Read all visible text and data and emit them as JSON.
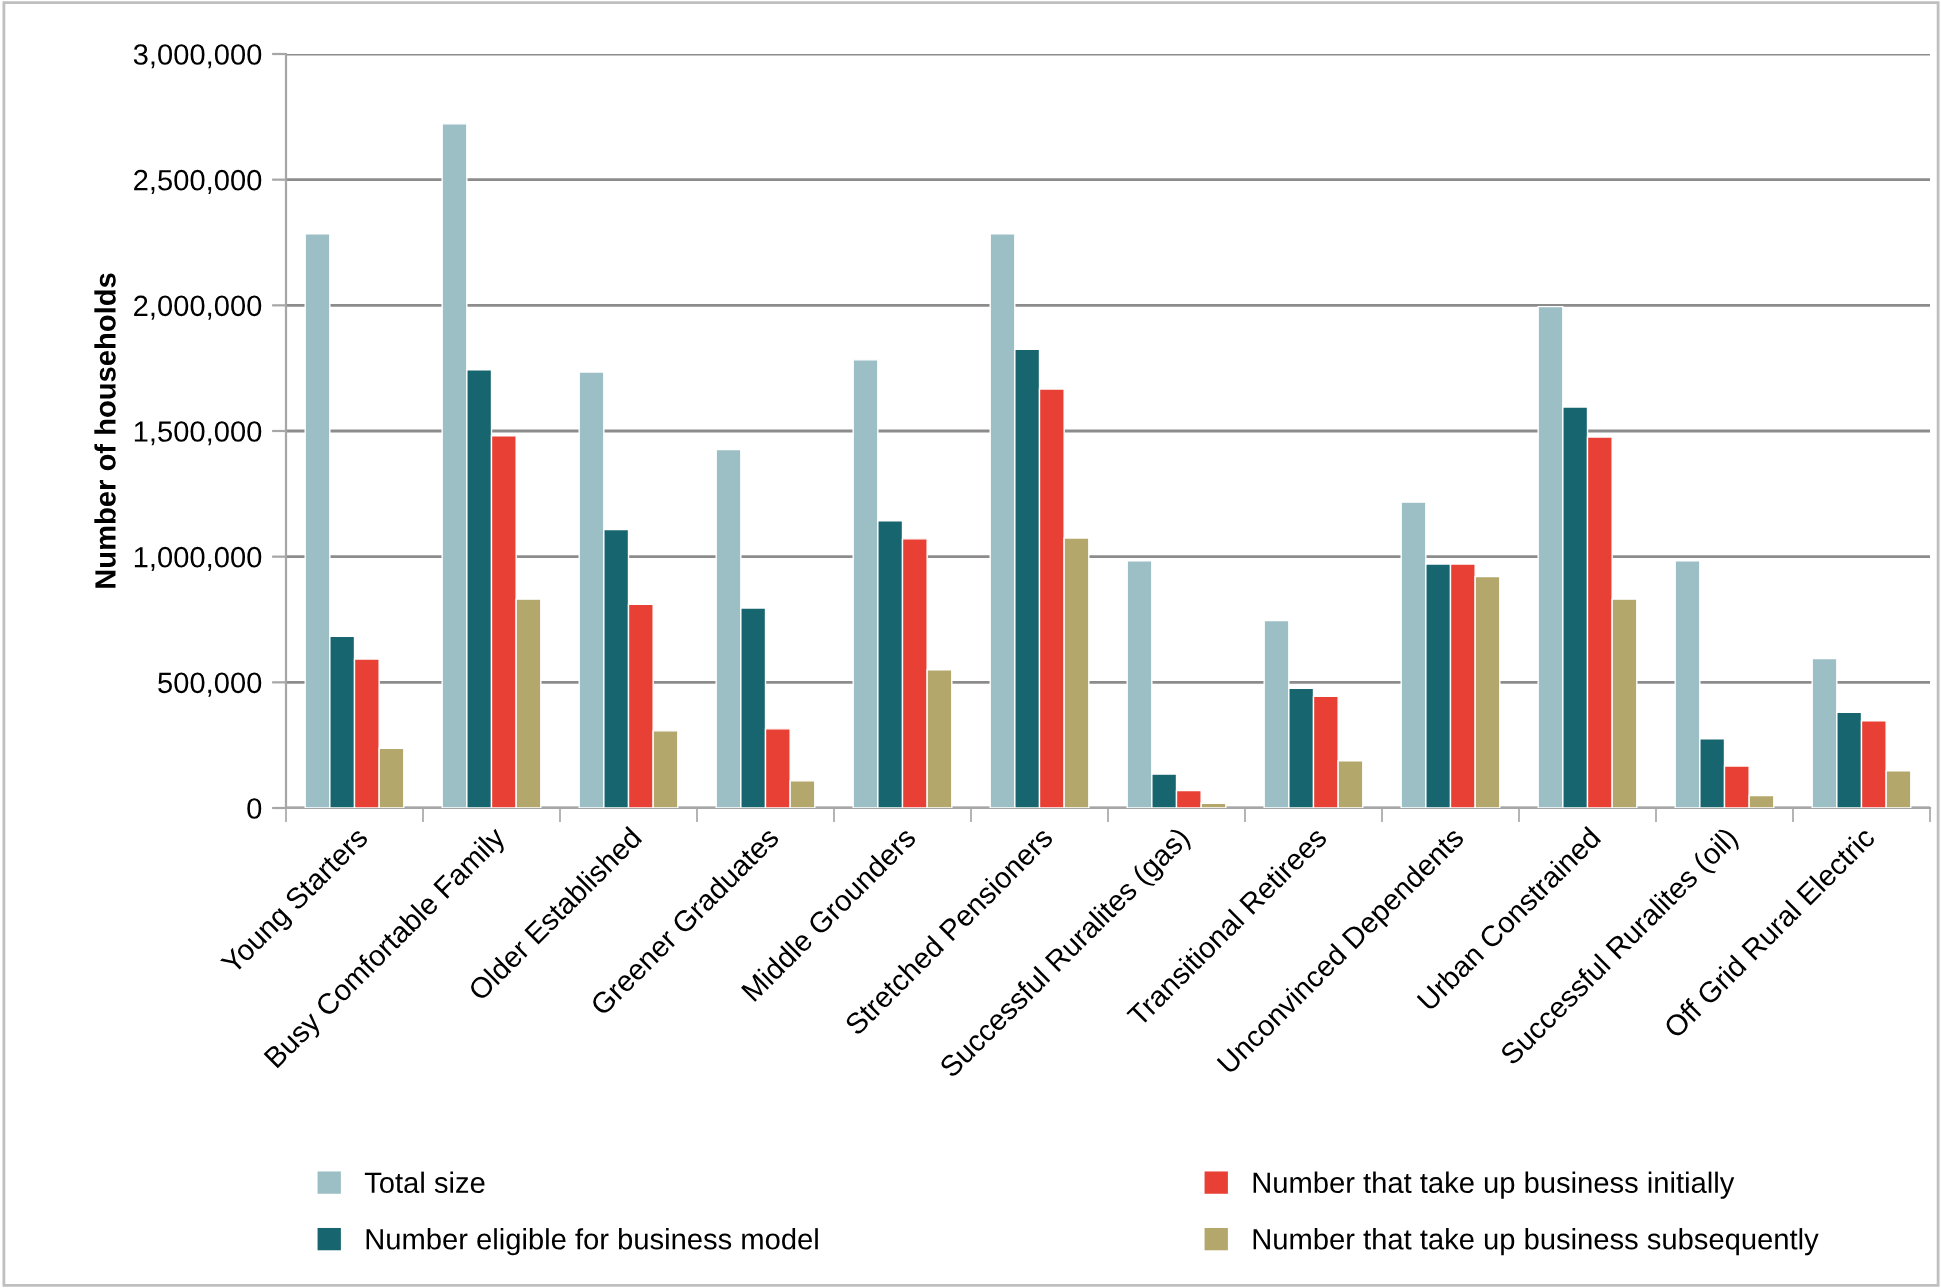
{
  "chart_data": {
    "type": "bar",
    "ylabel": "Number of households",
    "categories": [
      "Young Starters",
      "Busy Comfortable Family",
      "Older Established",
      "Greener Graduates",
      "Middle Grounders",
      "Stretched Pensioners",
      "Successful Ruralites (gas)",
      "Transitional Retirees",
      "Unconvinced Dependents",
      "Urban Constrained",
      "Successful Ruralites (oil)",
      "Off Grid Rural Electric"
    ],
    "series": [
      {
        "name": "Total size",
        "color": "#9bbfc4",
        "values": [
          2285000,
          2722000,
          1735000,
          1426000,
          1783000,
          2285000,
          984000,
          746000,
          1217000,
          1995000,
          984000,
          595000
        ]
      },
      {
        "name": "Number eligible for business model",
        "color": "#17656f",
        "values": [
          683000,
          1743000,
          1108000,
          796000,
          1143000,
          1825000,
          135000,
          476000,
          971000,
          1595000,
          275000,
          381000
        ]
      },
      {
        "name": "Number that take up business initially",
        "color": "#e84034",
        "values": [
          593000,
          1481000,
          810000,
          315000,
          1071000,
          1667000,
          69000,
          444000,
          971000,
          1476000,
          167000,
          347000
        ]
      },
      {
        "name": "Number that take up business subsequently",
        "color": "#b4a76c",
        "values": [
          238000,
          831000,
          307000,
          108000,
          550000,
          1074000,
          19000,
          188000,
          921000,
          831000,
          50000,
          148000
        ]
      }
    ],
    "ylim": [
      0,
      3000000
    ],
    "yticks": [
      {
        "value": 0,
        "label": "0"
      },
      {
        "value": 500000,
        "label": "500,000"
      },
      {
        "value": 1000000,
        "label": "1,000,000"
      },
      {
        "value": 1500000,
        "label": "1,500,000"
      },
      {
        "value": 2000000,
        "label": "2,000,000"
      },
      {
        "value": 2500000,
        "label": "2,500,000"
      },
      {
        "value": 3000000,
        "label": "3,000,000"
      }
    ],
    "grid": "y",
    "legend": "bottom"
  }
}
